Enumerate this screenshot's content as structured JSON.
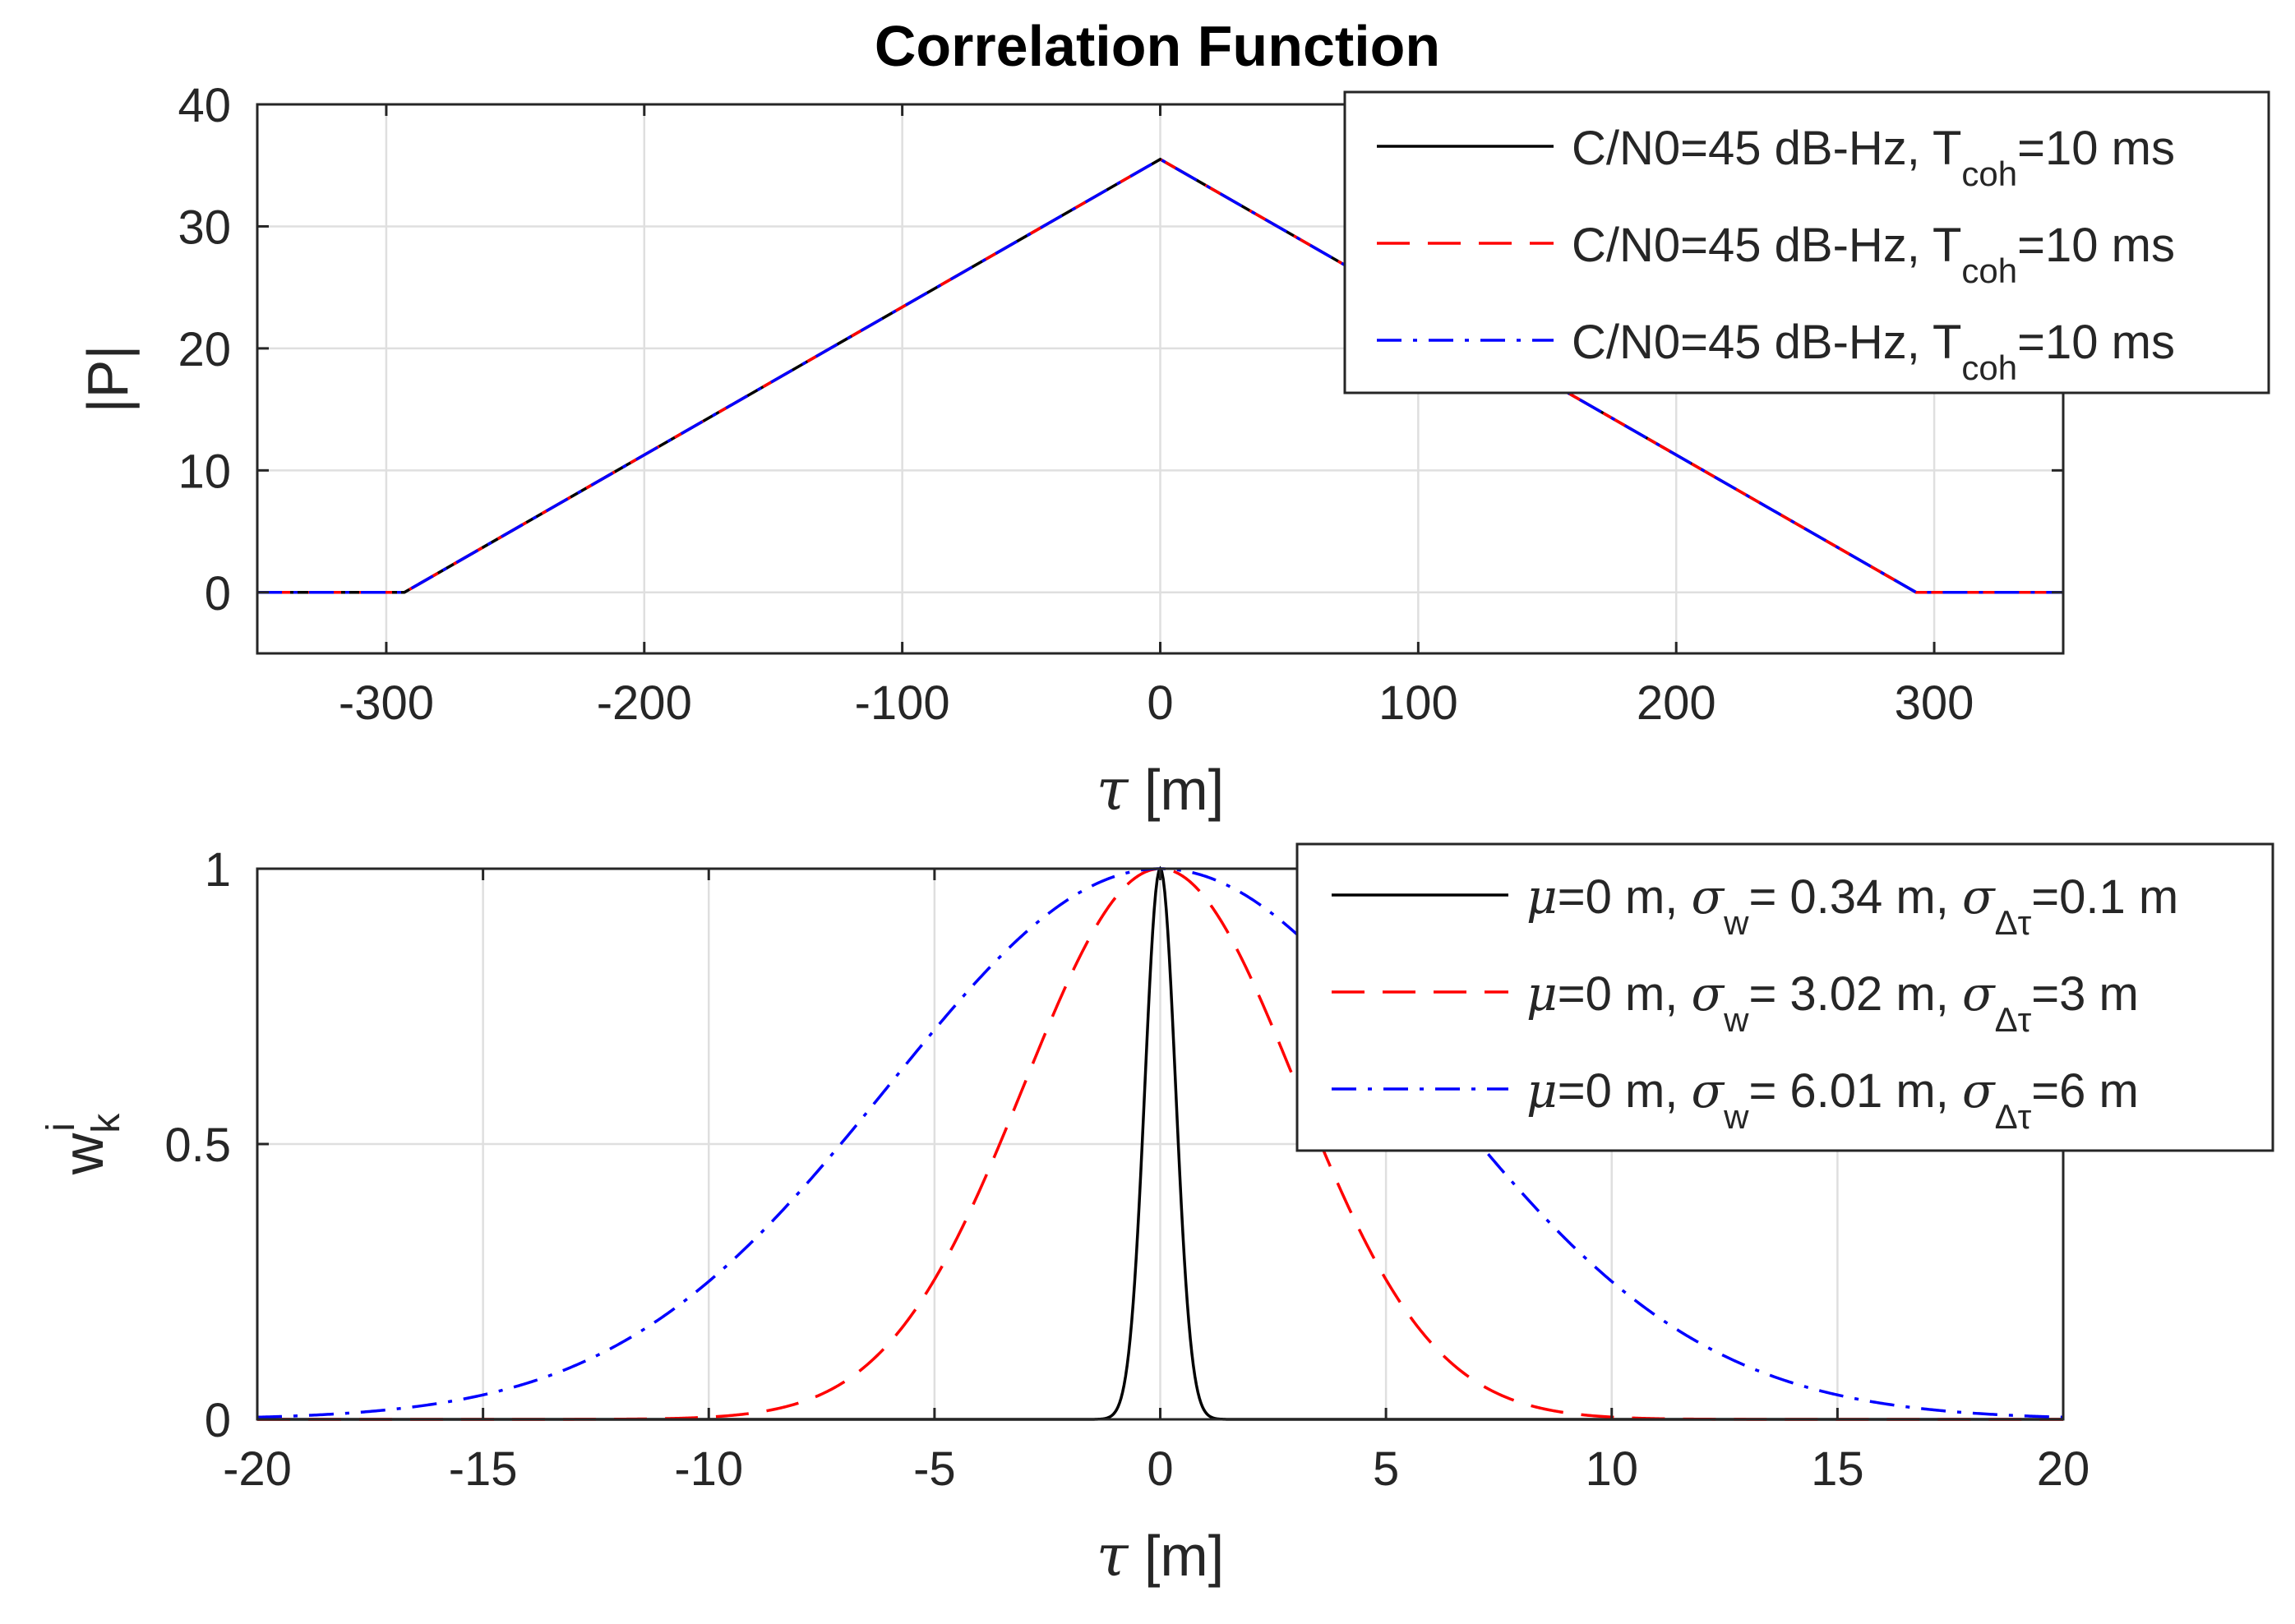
{
  "figure": {
    "title": "Correlation Function"
  },
  "chart_data": [
    {
      "type": "line",
      "title": "Correlation Function",
      "xlabel_symbol": "τ",
      "xlabel_unit": " [m]",
      "ylabel": "|P|",
      "xlim": [
        -350,
        350
      ],
      "ylim": [
        -5,
        40
      ],
      "xticks": [
        -300,
        -200,
        -100,
        0,
        100,
        200,
        300
      ],
      "xtick_labels": [
        "-300",
        "-200",
        "-100",
        "0",
        "100",
        "200",
        "300"
      ],
      "yticks": [
        0,
        10,
        20,
        30,
        40
      ],
      "ytick_labels": [
        "0",
        "10",
        "20",
        "30",
        "40"
      ],
      "grid": true,
      "legend_position": "top-right",
      "series": [
        {
          "name": "corr-black-solid",
          "legend_main": "C/N0=45 dB-Hz, T",
          "legend_sub": "coh",
          "legend_tail": "=10 ms",
          "color": "#000000",
          "dash": "solid",
          "x": [
            -350,
            -293,
            0,
            293,
            350
          ],
          "y": [
            0,
            0,
            35.5,
            0,
            0
          ]
        },
        {
          "name": "corr-red-dashed",
          "legend_main": "C/N0=45 dB-Hz, T",
          "legend_sub": "coh",
          "legend_tail": "=10 ms",
          "color": "#ff0000",
          "dash": "dashed",
          "x": [
            -350,
            -293,
            0,
            293,
            350
          ],
          "y": [
            0,
            0,
            35.5,
            0,
            0
          ]
        },
        {
          "name": "corr-blue-dashdot",
          "legend_main": "C/N0=45 dB-Hz, T",
          "legend_sub": "coh",
          "legend_tail": "=10 ms",
          "color": "#0000ff",
          "dash": "dashdot",
          "x": [
            -350,
            -293,
            0,
            293,
            350
          ],
          "y": [
            0,
            0,
            35.5,
            0,
            0
          ]
        }
      ]
    },
    {
      "type": "line",
      "title": "",
      "xlabel_symbol": "τ",
      "xlabel_unit": " [m]",
      "ylabel": "w",
      "ylabel_sub": "k",
      "ylabel_sup": "i",
      "xlim": [
        -20,
        20
      ],
      "ylim": [
        0,
        1
      ],
      "xticks": [
        -20,
        -15,
        -10,
        -5,
        0,
        5,
        10,
        15,
        20
      ],
      "xtick_labels": [
        "-20",
        "-15",
        "-10",
        "-5",
        "0",
        "5",
        "10",
        "15",
        "20"
      ],
      "yticks": [
        0,
        0.5,
        1
      ],
      "ytick_labels": [
        "0",
        "0.5",
        "1"
      ],
      "grid": true,
      "legend_position": "top-right",
      "series": [
        {
          "name": "weight-black-solid",
          "mu": 0,
          "sigma_w": 0.34,
          "color": "#000000",
          "dash": "solid",
          "legend_mu": "μ",
          "legend_part1": "=0 m, ",
          "legend_sigma": "σ",
          "legend_sub1": "w",
          "legend_part2": "= 0.34 m, ",
          "legend_sigma2": "σ",
          "legend_sub2": "Δτ",
          "legend_part3": "=0.1 m"
        },
        {
          "name": "weight-red-dashed",
          "mu": 0,
          "sigma_w": 3.02,
          "color": "#ff0000",
          "dash": "dashed",
          "legend_mu": "μ",
          "legend_part1": "=0 m, ",
          "legend_sigma": "σ",
          "legend_sub1": "w",
          "legend_part2": "= 3.02 m, ",
          "legend_sigma2": "σ",
          "legend_sub2": "Δτ",
          "legend_part3": "=3 m"
        },
        {
          "name": "weight-blue-dashdot",
          "mu": 0,
          "sigma_w": 6.01,
          "color": "#0000ff",
          "dash": "dashdot",
          "legend_mu": "μ",
          "legend_part1": "=0 m, ",
          "legend_sigma": "σ",
          "legend_sub1": "w",
          "legend_part2": "= 6.01 m, ",
          "legend_sigma2": "σ",
          "legend_sub2": "Δτ",
          "legend_part3": "=6 m"
        }
      ]
    }
  ]
}
